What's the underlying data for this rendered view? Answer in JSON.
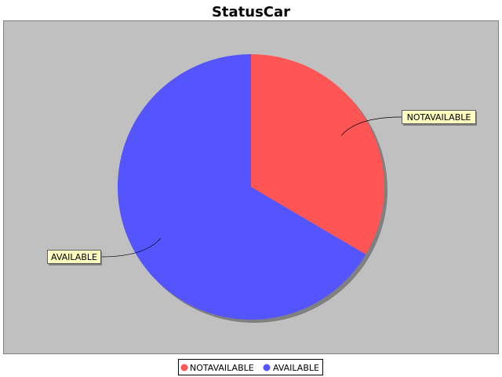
{
  "chart_data": {
    "type": "pie",
    "title": "StatusCar",
    "slices": [
      {
        "label": "NOTAVAILABLE",
        "value": 33.5,
        "color": "#ff5555"
      },
      {
        "label": "AVAILABLE",
        "value": 66.5,
        "color": "#5555ff"
      }
    ],
    "legend_position": "bottom",
    "background_color": "#c0c0c0",
    "label_box_color": "#ffffc0"
  }
}
